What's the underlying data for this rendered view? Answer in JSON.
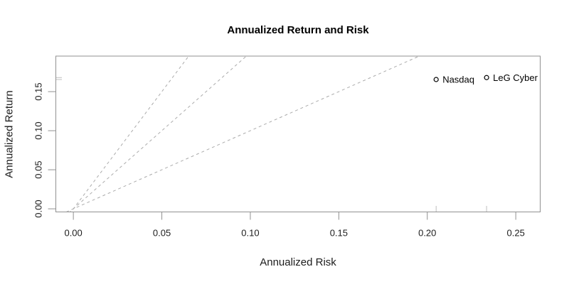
{
  "chart_data": {
    "type": "scatter",
    "title": "Annualized Return and Risk",
    "xlabel": "Annualized Risk",
    "ylabel": "Annualized Return",
    "xlim": [
      -0.0099,
      0.2638
    ],
    "ylim": [
      -0.004,
      0.1955
    ],
    "grid": false,
    "legend_position": "none",
    "x_tick_values": [
      0.0,
      0.05,
      0.1,
      0.15,
      0.2,
      0.25
    ],
    "x_tick_labels": [
      "0.00",
      "0.05",
      "0.10",
      "0.15",
      "0.20",
      "0.25"
    ],
    "y_tick_values": [
      0.0,
      0.05,
      0.1,
      0.15
    ],
    "y_tick_labels": [
      "0.00",
      "0.05",
      "0.10",
      "0.15"
    ],
    "points": [
      {
        "name": "Nasdaq",
        "x": 0.205,
        "y": 0.1655
      },
      {
        "name": "LeG Cyber",
        "x": 0.2335,
        "y": 0.168
      }
    ],
    "reference_lines": {
      "description": "Sharpe ratio reference lines through origin",
      "slopes": [
        1,
        2,
        3
      ],
      "intercept": 0,
      "style": "dashed"
    },
    "rug_x": [
      0.205,
      0.2335
    ],
    "rug_y": [
      0.1655,
      0.168
    ],
    "marker": "open-circle"
  },
  "colors": {
    "background": "#ffffff",
    "plot_border": "#909090",
    "tick": "#909090",
    "tick_label": "#1c1c1c",
    "dashed_line": "#ababab",
    "rug_mark": "#bfbfbf",
    "point_stroke": "#000000",
    "point_label": "#000000",
    "title": "#000000"
  }
}
